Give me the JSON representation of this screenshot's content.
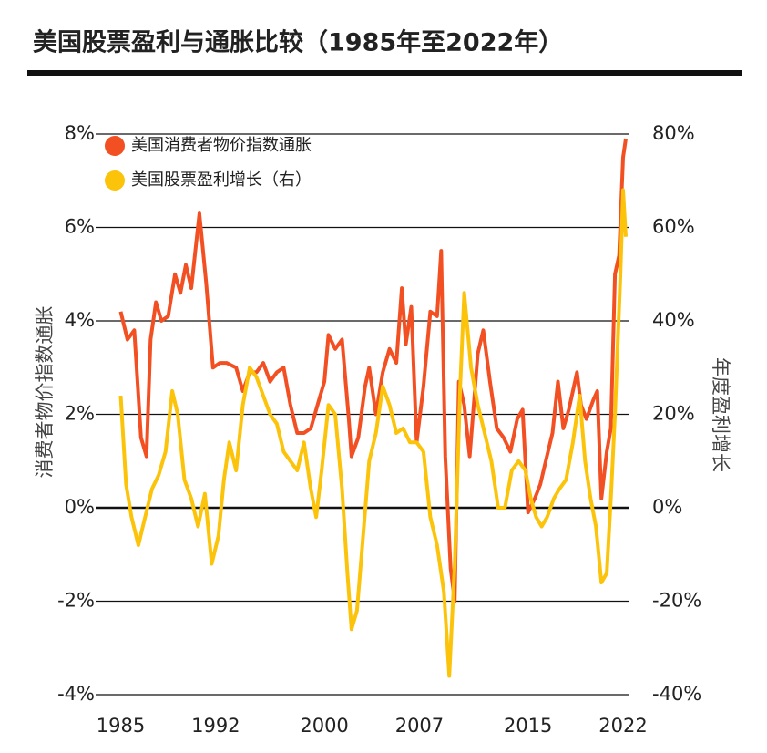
{
  "chart_data": {
    "type": "line",
    "title": "美国股票盈利与通胀比较（1985年至2022年）",
    "ylabel": "消费者物价指数通胀",
    "y2label": "年度盈利增长",
    "xlim": [
      1984.7,
      2022.4
    ],
    "xticks": [
      1985,
      1992,
      2000,
      2007,
      2015,
      2022
    ],
    "ylim": [
      -4,
      8
    ],
    "yticks": [
      {
        "value": -4,
        "label": "-4%"
      },
      {
        "value": -2,
        "label": "-2%"
      },
      {
        "value": 0,
        "label": "0%"
      },
      {
        "value": 2,
        "label": "2%"
      },
      {
        "value": 4,
        "label": "4%"
      },
      {
        "value": 6,
        "label": "6%"
      },
      {
        "value": 8,
        "label": "8%"
      }
    ],
    "y2lim": [
      -40,
      80
    ],
    "y2ticks": [
      {
        "value": -40,
        "label": "-40%"
      },
      {
        "value": -20,
        "label": "-20%"
      },
      {
        "value": 0,
        "label": "0%"
      },
      {
        "value": 20,
        "label": "20%"
      },
      {
        "value": 40,
        "label": "40%"
      },
      {
        "value": 60,
        "label": "60%"
      },
      {
        "value": 80,
        "label": "80%"
      }
    ],
    "grid": true,
    "series": [
      {
        "name": "美国消费者物价指数通胀",
        "color": "#f25022",
        "x": [
          1985.0,
          1985.5,
          1986.0,
          1986.5,
          1986.9,
          1987.2,
          1987.6,
          1988.0,
          1988.5,
          1989.0,
          1989.4,
          1989.8,
          1990.2,
          1990.8,
          1991.3,
          1991.8,
          1992.3,
          1992.8,
          1993.5,
          1994.0,
          1994.5,
          1995.0,
          1995.5,
          1996.0,
          1996.5,
          1997.0,
          1997.5,
          1998.0,
          1998.5,
          1999.0,
          1999.5,
          2000.0,
          2000.3,
          2000.8,
          2001.3,
          2001.8,
          2002.0,
          2002.5,
          2003.0,
          2003.3,
          2003.8,
          2004.3,
          2004.8,
          2005.3,
          2005.7,
          2006.0,
          2006.4,
          2006.8,
          2007.3,
          2007.8,
          2008.3,
          2008.6,
          2008.9,
          2009.3,
          2009.6,
          2009.9,
          2010.3,
          2010.7,
          2011.3,
          2011.7,
          2012.2,
          2012.7,
          2013.2,
          2013.7,
          2014.2,
          2014.6,
          2015.0,
          2015.5,
          2015.9,
          2016.3,
          2016.8,
          2017.2,
          2017.6,
          2018.0,
          2018.6,
          2018.9,
          2019.3,
          2019.8,
          2020.1,
          2020.4,
          2020.8,
          2021.1,
          2021.4,
          2021.7,
          2022.0,
          2022.2
        ],
        "values": [
          4.2,
          3.6,
          3.8,
          1.5,
          1.1,
          3.6,
          4.4,
          4.0,
          4.1,
          5.0,
          4.6,
          5.2,
          4.7,
          6.3,
          4.8,
          3.0,
          3.1,
          3.1,
          3.0,
          2.5,
          2.9,
          2.9,
          3.1,
          2.7,
          2.9,
          3.0,
          2.2,
          1.6,
          1.6,
          1.7,
          2.2,
          2.7,
          3.7,
          3.4,
          3.6,
          1.9,
          1.1,
          1.5,
          2.6,
          3.0,
          2.0,
          2.9,
          3.4,
          3.1,
          4.7,
          3.5,
          4.3,
          1.4,
          2.6,
          4.2,
          4.1,
          5.5,
          1.1,
          -1.3,
          -2.0,
          2.7,
          2.2,
          1.1,
          3.3,
          3.8,
          2.7,
          1.7,
          1.5,
          1.2,
          1.9,
          2.1,
          -0.1,
          0.2,
          0.5,
          1.0,
          1.6,
          2.7,
          1.7,
          2.1,
          2.9,
          2.2,
          1.9,
          2.3,
          2.5,
          0.2,
          1.2,
          1.7,
          5.0,
          5.4,
          7.5,
          7.9
        ]
      },
      {
        "name": "美国股票盈利增长（右）",
        "color": "#fcc30b",
        "axis": "y2",
        "x": [
          1985.0,
          1985.4,
          1985.8,
          1986.3,
          1986.8,
          1987.3,
          1987.8,
          1988.3,
          1988.8,
          1989.2,
          1989.7,
          1990.2,
          1990.7,
          1991.2,
          1991.7,
          1992.2,
          1992.6,
          1993.0,
          1993.5,
          1994.0,
          1994.5,
          1995.0,
          1995.5,
          1996.0,
          1996.5,
          1997.0,
          1997.5,
          1998.0,
          1998.5,
          1999.0,
          1999.4,
          1999.8,
          2000.3,
          2000.8,
          2001.3,
          2001.7,
          2002.0,
          2002.4,
          2002.8,
          2003.3,
          2003.8,
          2004.3,
          2004.8,
          2005.3,
          2005.8,
          2006.3,
          2006.8,
          2007.3,
          2007.8,
          2008.3,
          2008.8,
          2009.2,
          2009.6,
          2010.0,
          2010.3,
          2010.8,
          2011.3,
          2011.8,
          2012.3,
          2012.8,
          2013.3,
          2013.8,
          2014.3,
          2014.8,
          2015.2,
          2015.6,
          2016.0,
          2016.4,
          2016.9,
          2017.3,
          2017.8,
          2018.3,
          2018.8,
          2019.2,
          2019.6,
          2020.0,
          2020.4,
          2020.8,
          2021.1,
          2021.4,
          2021.8,
          2022.0,
          2022.2
        ],
        "values": [
          24,
          5,
          -2,
          -8,
          -2,
          4,
          7,
          12,
          25,
          20,
          6,
          2,
          -4,
          3,
          -12,
          -6,
          6,
          14,
          8,
          22,
          30,
          28,
          24,
          20,
          18,
          12,
          10,
          8,
          14,
          4,
          -2,
          8,
          22,
          20,
          4,
          -14,
          -26,
          -22,
          -8,
          10,
          16,
          26,
          22,
          16,
          17,
          14,
          14,
          12,
          -2,
          -8,
          -18,
          -36,
          -12,
          26,
          46,
          30,
          22,
          16,
          10,
          0,
          0,
          8,
          10,
          8,
          2,
          -2,
          -4,
          -2,
          2,
          4,
          6,
          14,
          24,
          10,
          2,
          -4,
          -16,
          -14,
          2,
          20,
          50,
          68,
          58
        ]
      }
    ]
  }
}
